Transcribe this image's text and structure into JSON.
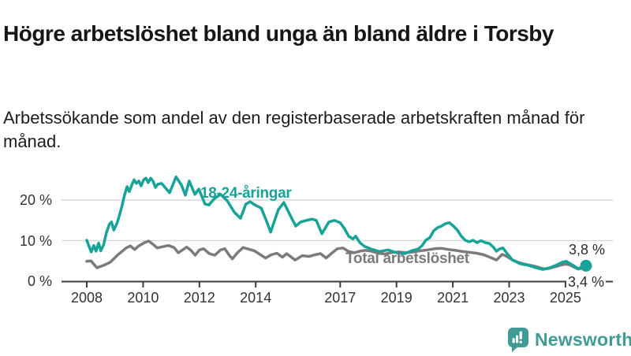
{
  "title": "Högre arbetslöshet bland unga än bland äldre i Torsby",
  "subtitle": "Arbetssökande som andel av den registerbaserade arbetskraften månad för månad.",
  "branding": {
    "name": "Newsworthy",
    "color": "#3f9b94",
    "icon": "bar-chart-speech-bubble"
  },
  "colors": {
    "youth_line": "#17a398",
    "total_line": "#7b7b7b",
    "grid": "#d9d9d9",
    "axis": "#3c3c3c",
    "text": "#333333"
  },
  "chart_data": {
    "type": "line",
    "title": "Högre arbetslöshet bland unga än bland äldre i Torsby",
    "xlabel": "",
    "ylabel": "",
    "xlim": [
      2007.8,
      2026.1
    ],
    "ylim": [
      0,
      27
    ],
    "grid": "horizontal",
    "x_ticks": [
      2008,
      2010,
      2012,
      2014,
      2017,
      2019,
      2021,
      2023,
      2025
    ],
    "x_tick_labels": [
      "2008",
      "2010",
      "2012",
      "2014",
      "2017",
      "2019",
      "2021",
      "2023",
      "2025"
    ],
    "y_ticks": [
      0,
      10,
      20
    ],
    "y_tick_labels": [
      "0 %",
      "10 %",
      "20 %"
    ],
    "legend_position": "inline-labels",
    "series": [
      {
        "name": "18-24-åringar",
        "color": "#17a398",
        "end_label": "3,8 %",
        "end_dot": true,
        "points": [
          [
            2008.0,
            10.1
          ],
          [
            2008.08,
            8.6
          ],
          [
            2008.16,
            7.2
          ],
          [
            2008.25,
            8.8
          ],
          [
            2008.33,
            7.4
          ],
          [
            2008.42,
            9.4
          ],
          [
            2008.5,
            7.5
          ],
          [
            2008.6,
            9.0
          ],
          [
            2008.7,
            12.0
          ],
          [
            2008.8,
            14.0
          ],
          [
            2008.88,
            14.6
          ],
          [
            2008.96,
            12.6
          ],
          [
            2009.08,
            14.4
          ],
          [
            2009.18,
            16.7
          ],
          [
            2009.26,
            18.8
          ],
          [
            2009.34,
            21.2
          ],
          [
            2009.43,
            23.3
          ],
          [
            2009.51,
            22.1
          ],
          [
            2009.6,
            23.7
          ],
          [
            2009.68,
            25.0
          ],
          [
            2009.76,
            24.1
          ],
          [
            2009.85,
            24.7
          ],
          [
            2009.93,
            23.5
          ],
          [
            2010.02,
            25.0
          ],
          [
            2010.1,
            25.4
          ],
          [
            2010.18,
            24.3
          ],
          [
            2010.27,
            25.4
          ],
          [
            2010.35,
            24.7
          ],
          [
            2010.44,
            23.1
          ],
          [
            2010.52,
            23.9
          ],
          [
            2010.66,
            24.1
          ],
          [
            2010.94,
            21.8
          ],
          [
            2011.17,
            25.7
          ],
          [
            2011.36,
            23.7
          ],
          [
            2011.5,
            21.2
          ],
          [
            2011.64,
            24.7
          ],
          [
            2011.84,
            21.4
          ],
          [
            2011.98,
            22.7
          ],
          [
            2012.2,
            19.0
          ],
          [
            2012.34,
            18.8
          ],
          [
            2012.54,
            20.4
          ],
          [
            2012.76,
            21.4
          ],
          [
            2012.99,
            19.8
          ],
          [
            2013.24,
            17.0
          ],
          [
            2013.46,
            15.5
          ],
          [
            2013.65,
            19.0
          ],
          [
            2013.8,
            19.6
          ],
          [
            2013.97,
            18.8
          ],
          [
            2014.2,
            18.0
          ],
          [
            2014.4,
            14.5
          ],
          [
            2014.53,
            12.1
          ],
          [
            2014.8,
            17.6
          ],
          [
            2015.0,
            19.4
          ],
          [
            2015.25,
            15.9
          ],
          [
            2015.42,
            13.6
          ],
          [
            2015.6,
            14.6
          ],
          [
            2015.8,
            15.0
          ],
          [
            2016.0,
            15.3
          ],
          [
            2016.15,
            15.0
          ],
          [
            2016.35,
            11.7
          ],
          [
            2016.6,
            14.6
          ],
          [
            2016.8,
            15.0
          ],
          [
            2017.0,
            14.4
          ],
          [
            2017.15,
            13.0
          ],
          [
            2017.3,
            11.1
          ],
          [
            2017.45,
            10.4
          ],
          [
            2017.55,
            11.1
          ],
          [
            2017.7,
            9.5
          ],
          [
            2017.86,
            8.6
          ],
          [
            2018.1,
            7.9
          ],
          [
            2018.4,
            7.3
          ],
          [
            2018.7,
            7.7
          ],
          [
            2019.0,
            7.0
          ],
          [
            2019.3,
            6.8
          ],
          [
            2019.57,
            7.6
          ],
          [
            2019.76,
            7.9
          ],
          [
            2019.9,
            8.7
          ],
          [
            2020.04,
            10.1
          ],
          [
            2020.18,
            10.7
          ],
          [
            2020.32,
            12.4
          ],
          [
            2020.46,
            13.2
          ],
          [
            2020.6,
            13.6
          ],
          [
            2020.74,
            14.2
          ],
          [
            2020.88,
            14.4
          ],
          [
            2021.02,
            13.6
          ],
          [
            2021.16,
            12.6
          ],
          [
            2021.3,
            11.1
          ],
          [
            2021.44,
            10.1
          ],
          [
            2021.58,
            9.7
          ],
          [
            2021.72,
            10.1
          ],
          [
            2021.86,
            9.5
          ],
          [
            2022.0,
            10.0
          ],
          [
            2022.15,
            9.5
          ],
          [
            2022.3,
            9.3
          ],
          [
            2022.45,
            8.3
          ],
          [
            2022.55,
            7.4
          ],
          [
            2022.65,
            7.9
          ],
          [
            2022.78,
            8.2
          ],
          [
            2022.93,
            6.8
          ],
          [
            2023.12,
            5.2
          ],
          [
            2023.4,
            4.3
          ],
          [
            2023.68,
            3.9
          ],
          [
            2023.96,
            3.3
          ],
          [
            2024.19,
            2.9
          ],
          [
            2024.44,
            3.3
          ],
          [
            2024.66,
            3.9
          ],
          [
            2024.89,
            4.7
          ],
          [
            2025.03,
            4.9
          ],
          [
            2025.17,
            4.3
          ],
          [
            2025.31,
            3.7
          ],
          [
            2025.45,
            3.1
          ],
          [
            2025.59,
            3.5
          ],
          [
            2025.73,
            3.8
          ]
        ]
      },
      {
        "name": "Total arbetslöshet",
        "color": "#7b7b7b",
        "end_label": "3,4 %",
        "end_dot": false,
        "points": [
          [
            2008.0,
            4.9
          ],
          [
            2008.15,
            5.0
          ],
          [
            2008.36,
            3.3
          ],
          [
            2008.6,
            3.9
          ],
          [
            2008.84,
            4.7
          ],
          [
            2009.12,
            6.6
          ],
          [
            2009.4,
            8.2
          ],
          [
            2009.55,
            8.7
          ],
          [
            2009.7,
            7.8
          ],
          [
            2009.85,
            8.7
          ],
          [
            2010.05,
            9.5
          ],
          [
            2010.2,
            9.9
          ],
          [
            2010.35,
            9.1
          ],
          [
            2010.5,
            8.2
          ],
          [
            2010.7,
            8.5
          ],
          [
            2010.9,
            8.8
          ],
          [
            2011.1,
            8.3
          ],
          [
            2011.25,
            7.0
          ],
          [
            2011.4,
            7.7
          ],
          [
            2011.55,
            8.4
          ],
          [
            2011.7,
            7.6
          ],
          [
            2011.85,
            6.4
          ],
          [
            2012.0,
            7.7
          ],
          [
            2012.15,
            8.0
          ],
          [
            2012.35,
            6.8
          ],
          [
            2012.55,
            6.4
          ],
          [
            2012.75,
            7.7
          ],
          [
            2012.9,
            8.0
          ],
          [
            2013.05,
            6.5
          ],
          [
            2013.17,
            5.5
          ],
          [
            2013.35,
            7.0
          ],
          [
            2013.55,
            8.3
          ],
          [
            2013.75,
            7.9
          ],
          [
            2013.95,
            7.5
          ],
          [
            2014.15,
            6.6
          ],
          [
            2014.35,
            5.7
          ],
          [
            2014.55,
            6.5
          ],
          [
            2014.75,
            6.9
          ],
          [
            2014.95,
            5.9
          ],
          [
            2015.1,
            6.8
          ],
          [
            2015.4,
            5.2
          ],
          [
            2015.65,
            6.3
          ],
          [
            2015.9,
            6.1
          ],
          [
            2016.1,
            6.5
          ],
          [
            2016.3,
            6.8
          ],
          [
            2016.5,
            5.7
          ],
          [
            2016.7,
            6.9
          ],
          [
            2016.9,
            8.0
          ],
          [
            2017.1,
            8.2
          ],
          [
            2017.3,
            7.3
          ],
          [
            2017.5,
            7.0
          ],
          [
            2017.7,
            7.4
          ],
          [
            2017.9,
            7.6
          ],
          [
            2018.1,
            7.4
          ],
          [
            2018.35,
            6.9
          ],
          [
            2018.6,
            6.7
          ],
          [
            2018.85,
            7.1
          ],
          [
            2019.1,
            7.2
          ],
          [
            2019.35,
            7.0
          ],
          [
            2019.6,
            7.2
          ],
          [
            2019.85,
            7.5
          ],
          [
            2020.1,
            7.7
          ],
          [
            2020.35,
            8.0
          ],
          [
            2020.6,
            8.1
          ],
          [
            2020.85,
            7.8
          ],
          [
            2021.1,
            7.6
          ],
          [
            2021.35,
            7.3
          ],
          [
            2021.6,
            7.1
          ],
          [
            2021.85,
            6.9
          ],
          [
            2022.1,
            6.5
          ],
          [
            2022.35,
            5.8
          ],
          [
            2022.55,
            5.2
          ],
          [
            2022.75,
            6.6
          ],
          [
            2022.9,
            6.2
          ],
          [
            2023.1,
            5.3
          ],
          [
            2023.3,
            4.7
          ],
          [
            2023.5,
            4.3
          ],
          [
            2023.7,
            4.0
          ],
          [
            2023.9,
            3.7
          ],
          [
            2024.1,
            3.3
          ],
          [
            2024.25,
            3.0
          ],
          [
            2024.45,
            3.2
          ],
          [
            2024.65,
            3.6
          ],
          [
            2024.85,
            4.0
          ],
          [
            2025.0,
            4.2
          ],
          [
            2025.15,
            4.0
          ],
          [
            2025.3,
            3.5
          ],
          [
            2025.45,
            3.0
          ],
          [
            2025.6,
            3.2
          ],
          [
            2025.73,
            3.4
          ]
        ]
      }
    ]
  }
}
